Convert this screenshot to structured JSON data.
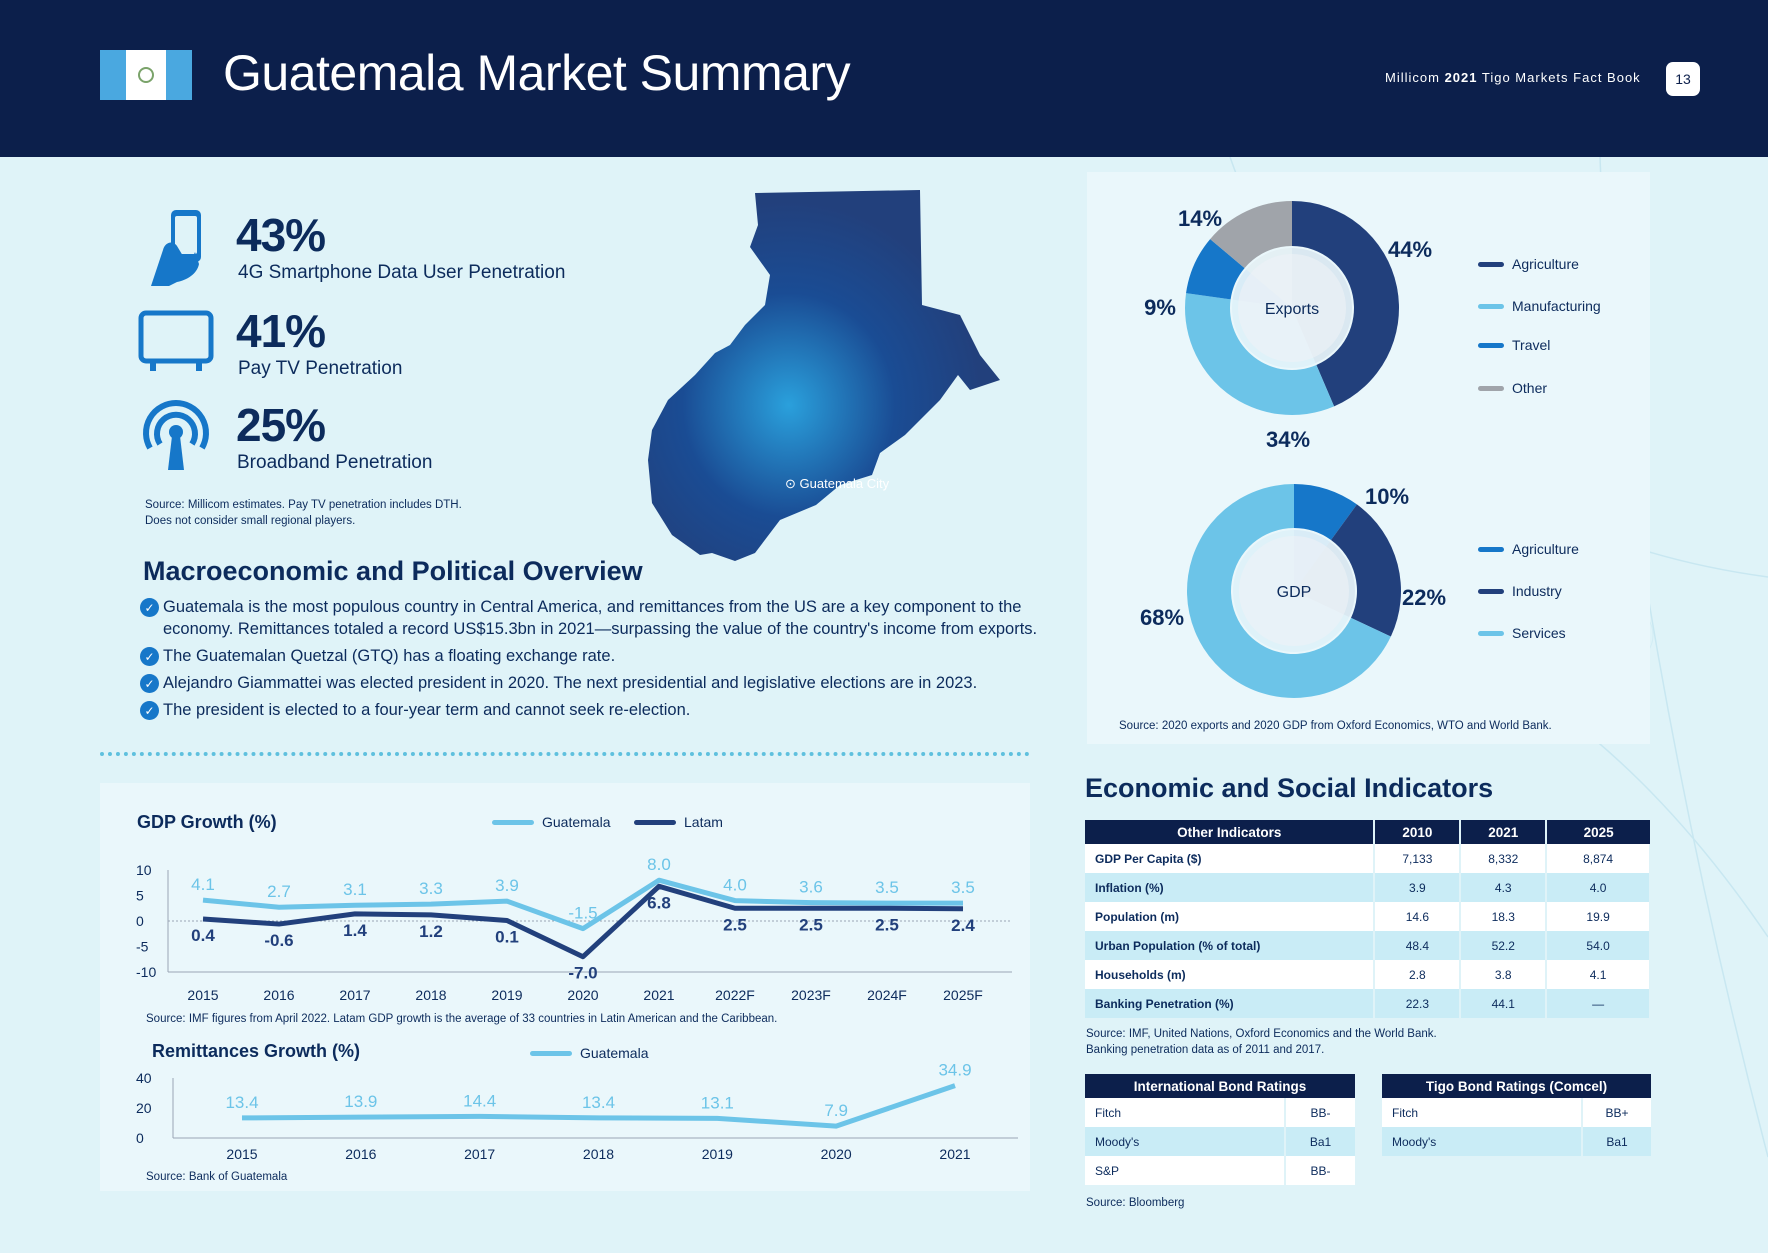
{
  "header": {
    "title": "Guatemala Market Summary",
    "factbook_prefix": "Millicom",
    "factbook_year": "2021",
    "factbook_suffix": "Tigo Markets Fact Book",
    "page_number": "13",
    "flag_icon": "guatemala-flag-icon"
  },
  "kpis": [
    {
      "value": "43%",
      "label": "4G Smartphone Data User Penetration",
      "icon": "smartphone-hand-icon"
    },
    {
      "value": "41%",
      "label": "Pay TV Penetration",
      "icon": "tv-icon"
    },
    {
      "value": "25%",
      "label": "Broadband Penetration",
      "icon": "broadband-antenna-icon"
    }
  ],
  "kpi_source": {
    "line1": "Source: Millicom estimates. Pay TV penetration includes DTH.",
    "line2": "Does not consider small regional players."
  },
  "map": {
    "city_label": "Guatemala City"
  },
  "macro": {
    "heading": "Macroeconomic and Political Overview",
    "bullets": [
      "Guatemala is the most populous country in Central America, and remittances from the US are a key component to the",
      "economy. Remittances totaled a record US$15.3bn in 2021—surpassing the value of the country's income from exports.",
      "The Guatemalan Quetzal (GTQ) has a floating exchange rate.",
      "Alejandro Giammattei was elected president in 2020. The next presidential and legislative elections are in 2023.",
      "The president is elected to a four-year term and cannot seek re-election."
    ]
  },
  "colors": {
    "navy": "#0c1f4b",
    "dark_blue": "#22407c",
    "mid_blue": "#1677c9",
    "light_blue": "#6cc4e8",
    "grey": "#a0a4aa"
  },
  "chart_data": [
    {
      "type": "pie",
      "title": "Exports",
      "categories": [
        "Agriculture",
        "Manufacturing",
        "Travel",
        "Other"
      ],
      "values": [
        44,
        34,
        9,
        14
      ],
      "labels": [
        "44%",
        "34%",
        "9%",
        "14%"
      ],
      "colors": [
        "#22407c",
        "#6cc4e8",
        "#1677c9",
        "#a0a4aa"
      ],
      "legend": [
        "Agriculture",
        "Manufacturing",
        "Travel",
        "Other"
      ],
      "legend_colors": [
        "#22407c",
        "#6cc4e8",
        "#1677c9",
        "#a0a4aa"
      ]
    },
    {
      "type": "pie",
      "title": "GDP",
      "categories": [
        "Agriculture",
        "Industry",
        "Services"
      ],
      "values": [
        10,
        22,
        68
      ],
      "labels": [
        "10%",
        "22%",
        "68%"
      ],
      "colors": [
        "#1677c9",
        "#22407c",
        "#6cc4e8"
      ],
      "legend": [
        "Agriculture",
        "Industry",
        "Services"
      ],
      "legend_colors": [
        "#1677c9",
        "#22407c",
        "#6cc4e8"
      ],
      "source": "Source: 2020 exports and 2020 GDP from Oxford Economics, WTO and World Bank."
    },
    {
      "type": "line",
      "title": "GDP Growth (%)",
      "x": [
        "2015",
        "2016",
        "2017",
        "2018",
        "2019",
        "2020",
        "2021",
        "2022F",
        "2023F",
        "2024F",
        "2025F"
      ],
      "series": [
        {
          "name": "Guatemala",
          "values": [
            4.1,
            2.7,
            3.1,
            3.3,
            3.9,
            -1.5,
            8.0,
            4.0,
            3.6,
            3.5,
            3.5
          ],
          "labels": [
            "4.1",
            "2.7",
            "3.1",
            "3.3",
            "3.9",
            "-1.5",
            "8.0",
            "4.0",
            "3.6",
            "3.5",
            "3.5"
          ],
          "color": "#6cc4e8"
        },
        {
          "name": "Latam",
          "values": [
            0.4,
            -0.6,
            1.4,
            1.2,
            0.1,
            -7.0,
            6.8,
            2.5,
            2.5,
            2.5,
            2.4
          ],
          "labels": [
            "0.4",
            "-0.6",
            "1.4",
            "1.2",
            "0.1",
            "-7.0",
            "6.8",
            "2.5",
            "2.5",
            "2.5",
            "2.4"
          ],
          "color": "#22407c"
        }
      ],
      "yticks": [
        "10",
        "5",
        "0",
        "-5",
        "-10"
      ],
      "ylim": [
        -10,
        10
      ],
      "source": "Source: IMF figures from April 2022. Latam GDP growth is the average of 33 countries in Latin American and the Caribbean."
    },
    {
      "type": "line",
      "title": "Remittances Growth (%)",
      "x": [
        "2015",
        "2016",
        "2017",
        "2018",
        "2019",
        "2020",
        "2021"
      ],
      "series": [
        {
          "name": "Guatemala",
          "values": [
            13.4,
            13.9,
            14.4,
            13.4,
            13.1,
            7.9,
            34.9
          ],
          "labels": [
            "13.4",
            "13.9",
            "14.4",
            "13.4",
            "13.1",
            "7.9",
            "34.9"
          ],
          "color": "#6cc4e8"
        }
      ],
      "yticks": [
        "40",
        "20",
        "0"
      ],
      "ylim": [
        0,
        40
      ],
      "source": "Source: Bank of Guatemala"
    }
  ],
  "econ": {
    "heading": "Economic and Social Indicators",
    "headers": [
      "Other Indicators",
      "2010",
      "2021",
      "2025"
    ],
    "rows": [
      [
        "GDP Per Capita ($)",
        "7,133",
        "8,332",
        "8,874"
      ],
      [
        "Inflation (%)",
        "3.9",
        "4.3",
        "4.0"
      ],
      [
        "Population (m)",
        "14.6",
        "18.3",
        "19.9"
      ],
      [
        "Urban Population (% of total)",
        "48.4",
        "52.2",
        "54.0"
      ],
      [
        "Households (m)",
        "2.8",
        "3.8",
        "4.1"
      ],
      [
        "Banking Penetration (%)",
        "22.3",
        "44.1",
        "—"
      ]
    ],
    "source1": "Source: IMF, United Nations, Oxford Economics and the World Bank.",
    "source2": "Banking penetration data as of 2011 and 2017."
  },
  "bonds": {
    "intl": {
      "title": "International Bond Ratings",
      "rows": [
        [
          "Fitch",
          "BB-"
        ],
        [
          "Moody's",
          "Ba1"
        ],
        [
          "S&P",
          "BB-"
        ]
      ]
    },
    "tigo": {
      "title": "Tigo Bond Ratings (Comcel)",
      "rows": [
        [
          "Fitch",
          "BB+"
        ],
        [
          "Moody's",
          "Ba1"
        ]
      ]
    },
    "source": "Source: Bloomberg"
  }
}
